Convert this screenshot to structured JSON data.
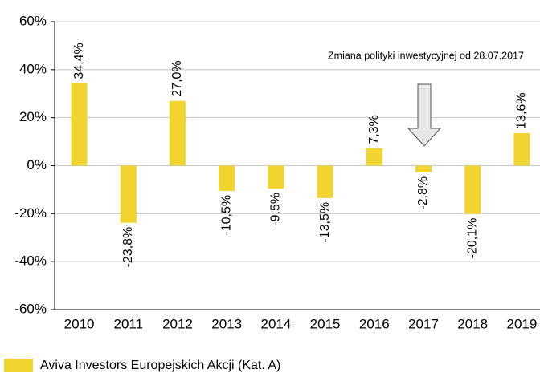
{
  "chart_data": {
    "type": "bar",
    "categories": [
      "2010",
      "2011",
      "2012",
      "2013",
      "2014",
      "2015",
      "2016",
      "2017",
      "2018",
      "2019"
    ],
    "series": [
      {
        "name": "Aviva Investors Europejskich Akcji (Kat. A)",
        "color": "#f2d42e",
        "values": [
          34.4,
          -23.8,
          27.0,
          -10.5,
          -9.5,
          -13.5,
          7.3,
          -2.8,
          -20.1,
          13.6
        ],
        "value_labels": [
          "34,4%",
          "-23,8%",
          "27,0%",
          "-10,5%",
          "-9,5%",
          "-13,5%",
          "7,3%",
          "-2,8%",
          "-20,1%",
          "13,6%"
        ]
      }
    ],
    "ylim": [
      -60,
      60
    ],
    "yticks": [
      {
        "value": -60,
        "label": "-60%"
      },
      {
        "value": -40,
        "label": "-40%"
      },
      {
        "value": -20,
        "label": "-20%"
      },
      {
        "value": 0,
        "label": "0%"
      },
      {
        "value": 20,
        "label": "20%"
      },
      {
        "value": 40,
        "label": "40%"
      },
      {
        "value": 60,
        "label": "60%"
      }
    ],
    "grid": true,
    "annotation": "Zmiana polityki inwestycyjnej od 28.07.2017",
    "legend": "bottom-left"
  }
}
